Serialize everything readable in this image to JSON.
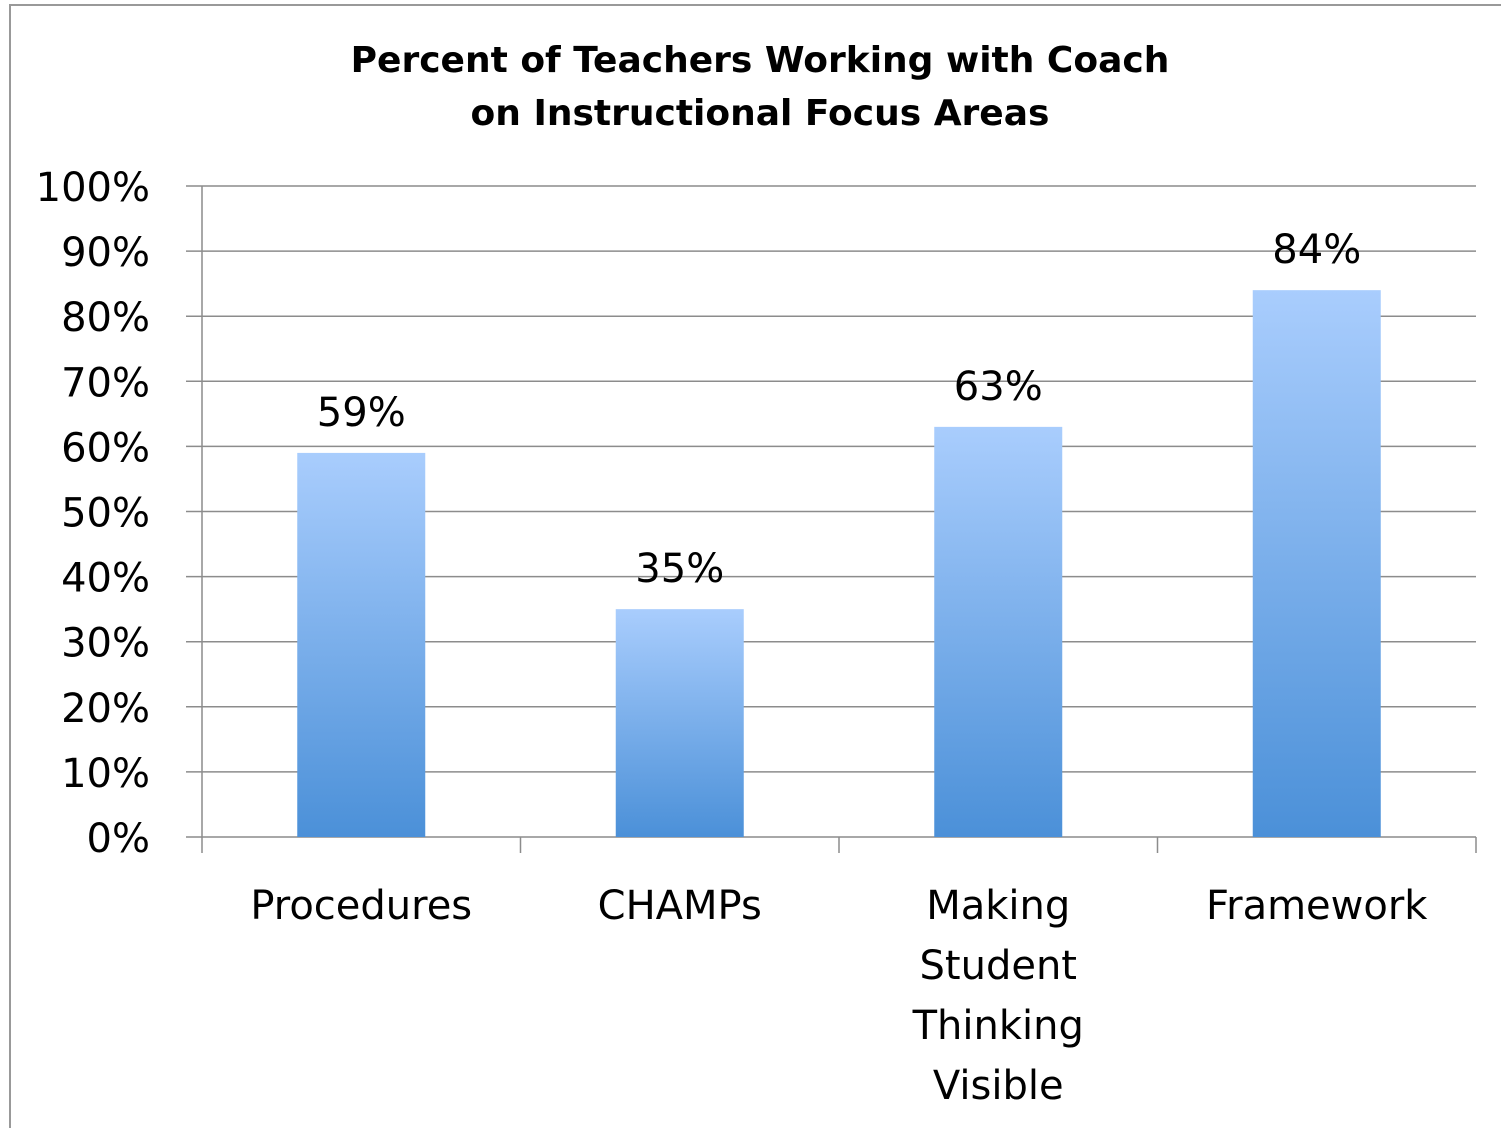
{
  "chart_data": {
    "type": "bar",
    "title": [
      "Percent of Teachers Working with Coach",
      "on Instructional Focus Areas"
    ],
    "categories": [
      "Procedures",
      "CHAMPs",
      "Making Student Thinking Visible",
      "Framework"
    ],
    "values": [
      59,
      35,
      63,
      84
    ],
    "value_labels": [
      "59%",
      "35%",
      "63%",
      "84%"
    ],
    "color": [
      "#a9cdfd",
      "#4b90d8"
    ],
    "ylim": [
      0,
      100
    ],
    "yticks": [
      {
        "value": 0,
        "label": "0%"
      },
      {
        "value": 10,
        "label": "10%"
      },
      {
        "value": 20,
        "label": "20%"
      },
      {
        "value": 30,
        "label": "30%"
      },
      {
        "value": 40,
        "label": "40%"
      },
      {
        "value": 50,
        "label": "50%"
      },
      {
        "value": 60,
        "label": "60%"
      },
      {
        "value": 70,
        "label": "70%"
      },
      {
        "value": 80,
        "label": "80%"
      },
      {
        "value": 90,
        "label": "90%"
      },
      {
        "value": 100,
        "label": "100%"
      }
    ],
    "grid": true
  }
}
